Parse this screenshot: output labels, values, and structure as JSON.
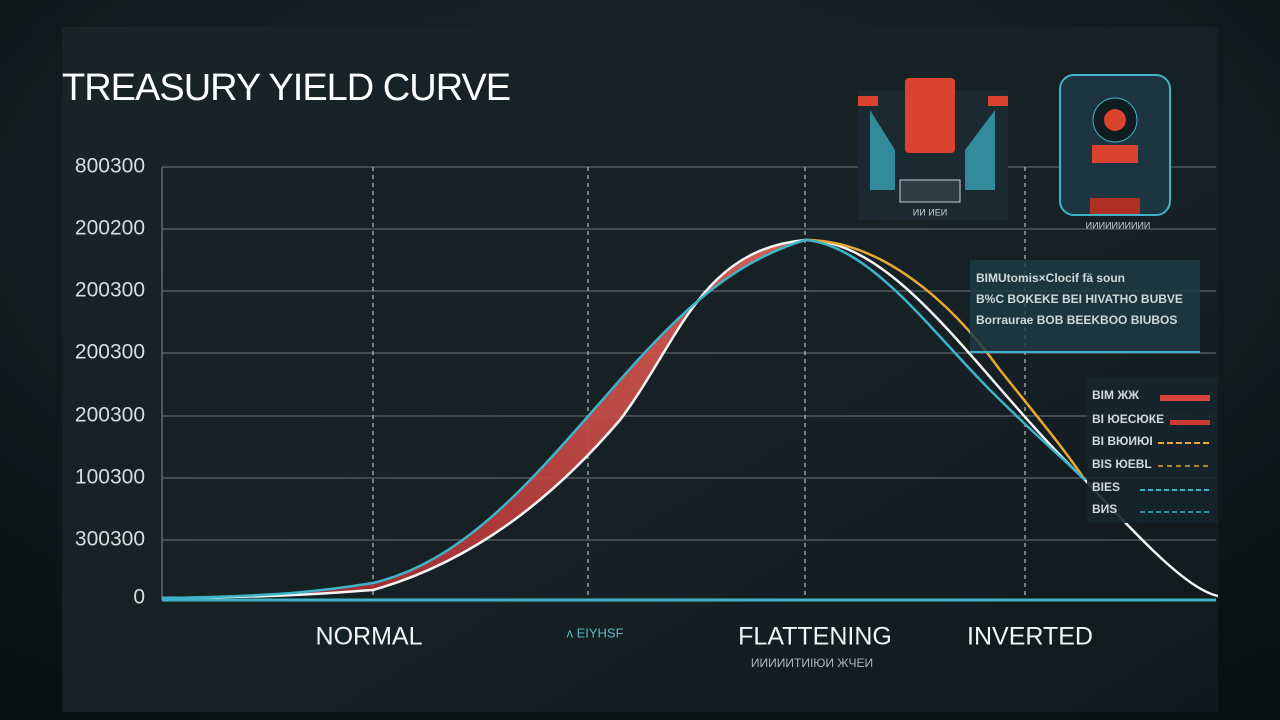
{
  "title": "TREASURY YIELD CURVE",
  "y_axis_labels": [
    "800300",
    "200200",
    "200300",
    "200300",
    "200300",
    "100300",
    "300300",
    "0"
  ],
  "x_axis_labels": [
    "NORMAL",
    "ʌ EIYHSF",
    "FLATTENING",
    "INVERTED"
  ],
  "x_axis_sublabel": "ИИИИИТИIЮИ ЖЧЕИ",
  "info_box": [
    "BIMUtomis×Clocif fä soun",
    "B%C BOKEKE BEI HIVATHO BUBVE",
    "Borraurae BOB BEEKBOO BIUBOS"
  ],
  "legend": [
    "BIM ЖЖ",
    "BI ЮЕСЮКЕ",
    "BI BЮИЮI",
    "BIS ЮЕBL",
    "BIES",
    "BИS"
  ],
  "icon_captions": [
    "ИИ ИЕИ",
    "ИИИИИИИИИИ"
  ]
}
